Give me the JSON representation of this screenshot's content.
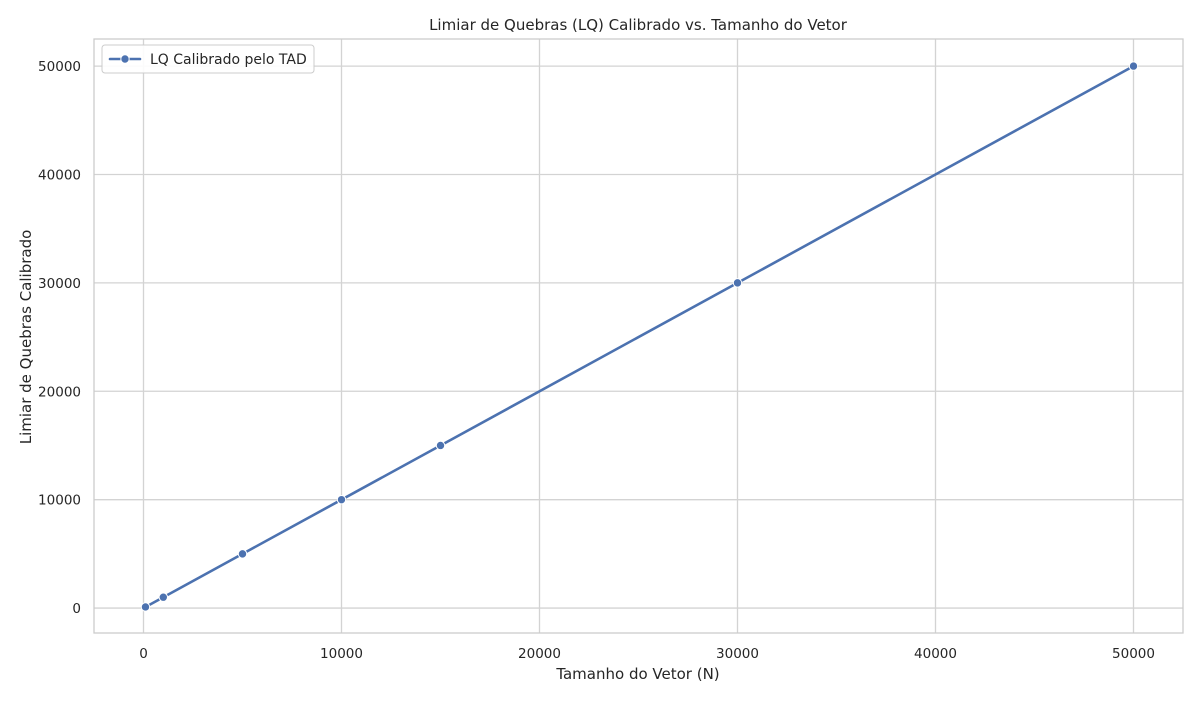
{
  "chart_data": {
    "type": "line",
    "title": "Limiar de Quebras (LQ) Calibrado vs. Tamanho do Vetor",
    "xlabel": "Tamanho do Vetor (N)",
    "ylabel": "Limiar de Quebras Calibrado",
    "xlim": [
      -2500,
      52500
    ],
    "ylim": [
      -2300,
      52500
    ],
    "xticks": [
      0,
      10000,
      20000,
      30000,
      40000,
      50000
    ],
    "yticks": [
      0,
      10000,
      20000,
      30000,
      40000,
      50000
    ],
    "grid": true,
    "legend_position": "top-left",
    "series": [
      {
        "name": "LQ Calibrado pelo TAD",
        "color": "#4c72b0",
        "marker": "circle",
        "x": [
          100,
          1000,
          5000,
          10000,
          15000,
          30000,
          50000
        ],
        "y": [
          100,
          1000,
          5000,
          10000,
          15000,
          30000,
          50000
        ]
      }
    ]
  }
}
